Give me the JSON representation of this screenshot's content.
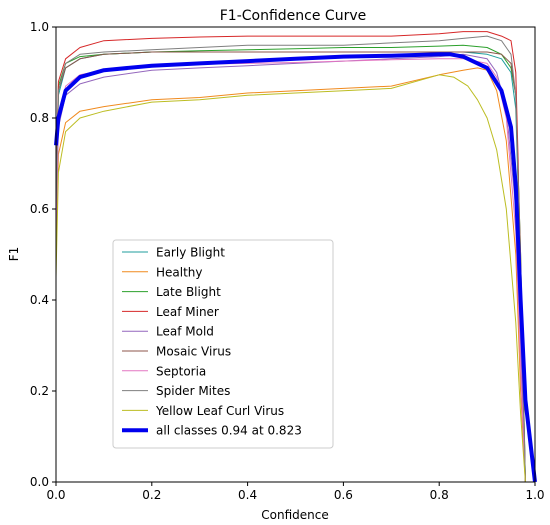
{
  "chart_data": {
    "type": "line",
    "title": "F1-Confidence Curve",
    "xlabel": "Confidence",
    "ylabel": "F1",
    "xlim": [
      0,
      1
    ],
    "ylim": [
      0,
      1
    ],
    "xticks": [
      "0.0",
      "0.2",
      "0.4",
      "0.6",
      "0.8",
      "1.0"
    ],
    "yticks": [
      "0.0",
      "0.2",
      "0.4",
      "0.6",
      "0.8",
      "1.0"
    ],
    "grid": false,
    "legend_position": "lower-left",
    "series": [
      {
        "name": "Early Blight",
        "color": "#1f9e9e",
        "width": 1,
        "x": [
          0,
          0.005,
          0.02,
          0.05,
          0.1,
          0.2,
          0.3,
          0.4,
          0.5,
          0.6,
          0.7,
          0.8,
          0.85,
          0.9,
          0.93,
          0.95,
          0.96,
          0.97,
          0.98
        ],
        "y": [
          0.55,
          0.85,
          0.91,
          0.93,
          0.94,
          0.945,
          0.945,
          0.945,
          0.945,
          0.945,
          0.945,
          0.945,
          0.945,
          0.94,
          0.93,
          0.9,
          0.82,
          0.45,
          0
        ]
      },
      {
        "name": "Healthy",
        "color": "#f08a1e",
        "width": 1,
        "x": [
          0,
          0.005,
          0.02,
          0.05,
          0.1,
          0.2,
          0.3,
          0.4,
          0.5,
          0.6,
          0.7,
          0.8,
          0.85,
          0.88,
          0.9,
          0.92,
          0.94,
          0.96,
          0.97,
          0.98
        ],
        "y": [
          0.5,
          0.72,
          0.79,
          0.815,
          0.825,
          0.84,
          0.845,
          0.855,
          0.86,
          0.865,
          0.87,
          0.895,
          0.905,
          0.91,
          0.905,
          0.86,
          0.75,
          0.5,
          0.2,
          0
        ]
      },
      {
        "name": "Late Blight",
        "color": "#2ca02c",
        "width": 1,
        "x": [
          0,
          0.005,
          0.02,
          0.05,
          0.1,
          0.2,
          0.3,
          0.4,
          0.5,
          0.6,
          0.7,
          0.8,
          0.85,
          0.9,
          0.93,
          0.95,
          0.96,
          0.97,
          0.98
        ],
        "y": [
          0.6,
          0.87,
          0.92,
          0.935,
          0.94,
          0.945,
          0.948,
          0.95,
          0.952,
          0.955,
          0.955,
          0.958,
          0.96,
          0.955,
          0.94,
          0.91,
          0.85,
          0.5,
          0
        ]
      },
      {
        "name": "Leaf Miner",
        "color": "#d62728",
        "width": 1,
        "x": [
          0,
          0.005,
          0.02,
          0.05,
          0.1,
          0.2,
          0.3,
          0.4,
          0.5,
          0.6,
          0.7,
          0.8,
          0.85,
          0.9,
          0.93,
          0.95,
          0.96,
          0.965,
          0.97,
          0.98
        ],
        "y": [
          0.65,
          0.88,
          0.93,
          0.955,
          0.97,
          0.975,
          0.978,
          0.98,
          0.98,
          0.98,
          0.98,
          0.985,
          0.99,
          0.99,
          0.98,
          0.97,
          0.9,
          0.7,
          0.35,
          0
        ]
      },
      {
        "name": "Leaf Mold",
        "color": "#9467bd",
        "width": 1,
        "x": [
          0,
          0.005,
          0.02,
          0.05,
          0.1,
          0.2,
          0.3,
          0.4,
          0.5,
          0.6,
          0.7,
          0.8,
          0.85,
          0.9,
          0.92,
          0.94,
          0.96,
          0.97,
          0.98
        ],
        "y": [
          0.55,
          0.78,
          0.85,
          0.875,
          0.89,
          0.905,
          0.91,
          0.915,
          0.92,
          0.925,
          0.93,
          0.935,
          0.94,
          0.93,
          0.9,
          0.82,
          0.6,
          0.3,
          0
        ]
      },
      {
        "name": "Mosaic Virus",
        "color": "#8c564b",
        "width": 1,
        "x": [
          0,
          0.005,
          0.02,
          0.05,
          0.1,
          0.2,
          0.3,
          0.4,
          0.5,
          0.6,
          0.7,
          0.8,
          0.85,
          0.9,
          0.93,
          0.95,
          0.96,
          0.97,
          0.98
        ],
        "y": [
          0.6,
          0.86,
          0.91,
          0.93,
          0.94,
          0.945,
          0.945,
          0.945,
          0.945,
          0.945,
          0.945,
          0.945,
          0.945,
          0.945,
          0.94,
          0.92,
          0.85,
          0.5,
          0
        ]
      },
      {
        "name": "Septoria",
        "color": "#e377c2",
        "width": 1,
        "x": [
          0,
          0.005,
          0.02,
          0.05,
          0.1,
          0.2,
          0.3,
          0.4,
          0.5,
          0.6,
          0.7,
          0.8,
          0.85,
          0.9,
          0.92,
          0.94,
          0.96,
          0.97,
          0.98
        ],
        "y": [
          0.55,
          0.8,
          0.87,
          0.895,
          0.905,
          0.915,
          0.918,
          0.92,
          0.922,
          0.925,
          0.928,
          0.93,
          0.93,
          0.92,
          0.89,
          0.8,
          0.55,
          0.25,
          0
        ]
      },
      {
        "name": "Spider Mites",
        "color": "#7f7f7f",
        "width": 1,
        "x": [
          0,
          0.005,
          0.02,
          0.05,
          0.1,
          0.2,
          0.3,
          0.4,
          0.5,
          0.6,
          0.7,
          0.8,
          0.85,
          0.9,
          0.93,
          0.95,
          0.96,
          0.97,
          0.98
        ],
        "y": [
          0.6,
          0.86,
          0.92,
          0.94,
          0.945,
          0.95,
          0.955,
          0.96,
          0.96,
          0.96,
          0.965,
          0.97,
          0.975,
          0.98,
          0.97,
          0.94,
          0.85,
          0.45,
          0
        ]
      },
      {
        "name": "Yellow Leaf Curl Virus",
        "color": "#bcbd22",
        "width": 1,
        "x": [
          0,
          0.005,
          0.02,
          0.05,
          0.1,
          0.2,
          0.3,
          0.4,
          0.5,
          0.6,
          0.7,
          0.8,
          0.83,
          0.86,
          0.88,
          0.9,
          0.92,
          0.94,
          0.96,
          0.97,
          0.98
        ],
        "y": [
          0.45,
          0.68,
          0.77,
          0.8,
          0.815,
          0.835,
          0.84,
          0.85,
          0.855,
          0.86,
          0.865,
          0.895,
          0.89,
          0.87,
          0.84,
          0.8,
          0.73,
          0.6,
          0.35,
          0.15,
          0
        ]
      },
      {
        "name": "all classes 0.94 at 0.823",
        "color": "#0000ee",
        "width": 4,
        "x": [
          0,
          0.005,
          0.02,
          0.05,
          0.1,
          0.2,
          0.3,
          0.4,
          0.5,
          0.6,
          0.7,
          0.8,
          0.823,
          0.85,
          0.9,
          0.93,
          0.95,
          0.96,
          0.97,
          0.98,
          1.0
        ],
        "y": [
          0.74,
          0.8,
          0.86,
          0.89,
          0.905,
          0.915,
          0.92,
          0.925,
          0.93,
          0.935,
          0.937,
          0.94,
          0.94,
          0.935,
          0.91,
          0.86,
          0.78,
          0.65,
          0.4,
          0.18,
          0
        ]
      }
    ]
  }
}
